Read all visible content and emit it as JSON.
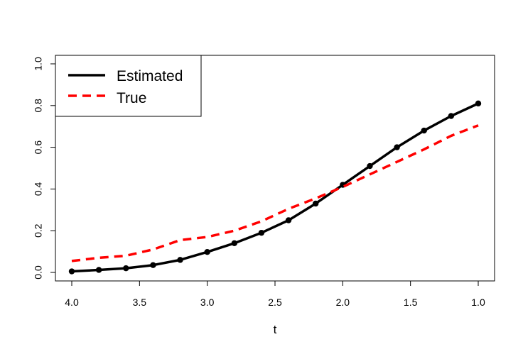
{
  "chart_data": {
    "type": "line",
    "title": "",
    "xlabel": "t",
    "ylabel": "",
    "xlim": [
      4.0,
      1.0
    ],
    "ylim": [
      0.0,
      1.0
    ],
    "x_reversed": true,
    "grid": false,
    "legend_position": "top-left",
    "x_ticks": [
      4.0,
      3.5,
      3.0,
      2.5,
      2.0,
      1.5,
      1.0
    ],
    "x_tick_labels": [
      "4.0",
      "3.5",
      "3.0",
      "2.5",
      "2.0",
      "1.5",
      "1.0"
    ],
    "y_ticks": [
      0.0,
      0.2,
      0.4,
      0.6,
      0.8,
      1.0
    ],
    "y_tick_labels": [
      "0.0",
      "0.2",
      "0.4",
      "0.6",
      "0.8",
      "1.0"
    ],
    "series": [
      {
        "name": "Estimated",
        "color": "#000000",
        "line_style": "solid",
        "markers": true,
        "x": [
          4.0,
          3.8,
          3.6,
          3.4,
          3.2,
          3.0,
          2.8,
          2.6,
          2.4,
          2.2,
          2.0,
          1.8,
          1.6,
          1.4,
          1.2,
          1.0
        ],
        "y": [
          0.005,
          0.012,
          0.02,
          0.035,
          0.06,
          0.098,
          0.14,
          0.19,
          0.25,
          0.33,
          0.42,
          0.51,
          0.6,
          0.68,
          0.75,
          0.81
        ]
      },
      {
        "name": "True",
        "color": "#ff0000",
        "line_style": "dashed",
        "markers": false,
        "x": [
          4.0,
          3.8,
          3.6,
          3.4,
          3.2,
          3.0,
          2.8,
          2.6,
          2.4,
          2.2,
          2.0,
          1.8,
          1.6,
          1.4,
          1.2,
          1.0
        ],
        "y": [
          0.055,
          0.07,
          0.08,
          0.11,
          0.155,
          0.17,
          0.2,
          0.245,
          0.305,
          0.355,
          0.41,
          0.47,
          0.53,
          0.59,
          0.655,
          0.705
        ]
      }
    ]
  }
}
